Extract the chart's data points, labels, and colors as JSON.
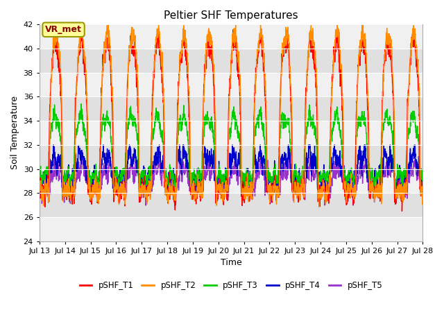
{
  "title": "Peltier SHF Temperatures",
  "xlabel": "Time",
  "ylabel": "Soil Temperature",
  "ylim": [
    24,
    42
  ],
  "yticks": [
    24,
    26,
    28,
    30,
    32,
    34,
    36,
    38,
    40,
    42
  ],
  "xtick_labels": [
    "Jul 13",
    "Jul 14",
    "Jul 15",
    "Jul 16",
    "Jul 17",
    "Jul 18",
    "Jul 19",
    "Jul 20",
    "Jul 21",
    "Jul 22",
    "Jul 23",
    "Jul 24",
    "Jul 25",
    "Jul 26",
    "Jul 27",
    "Jul 28"
  ],
  "annotation_text": "VR_met",
  "annotation_color": "#8B0000",
  "annotation_bg": "#FFFF99",
  "annotation_edge": "#999900",
  "line_colors": {
    "T1": "#FF0000",
    "T2": "#FF8C00",
    "T3": "#00CC00",
    "T4": "#0000CC",
    "T5": "#9932CC"
  },
  "legend_labels": [
    "pSHF_T1",
    "pSHF_T2",
    "pSHF_T3",
    "pSHF_T4",
    "pSHF_T5"
  ],
  "bg_light": "#F0F0F0",
  "bg_dark": "#E0E0E0",
  "title_fontsize": 11,
  "tick_fontsize": 8,
  "axes_label_fontsize": 9
}
